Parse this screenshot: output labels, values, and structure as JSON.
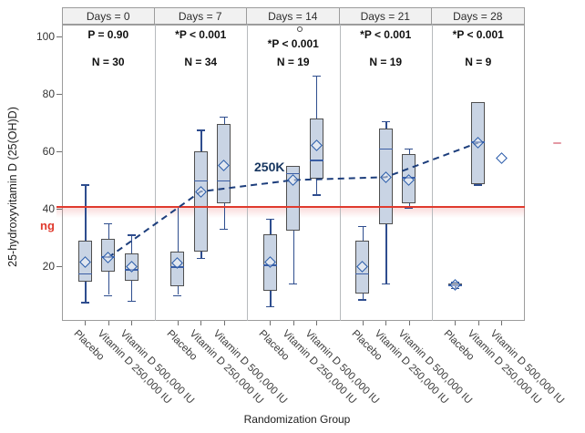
{
  "chart_data": {
    "type": "box",
    "title": "",
    "ylabel": "25-hydroxyvitamin D (25(OH)D)",
    "y_unit_label": "ng",
    "xlabel": "Randomization Group",
    "yticks": [
      20,
      40,
      60,
      80,
      100
    ],
    "ylim": [
      1,
      104
    ],
    "grid": false,
    "group_labels": [
      "Placebo",
      "Vitamin D 250,000 IU",
      "Vitamin D 500,000 IU"
    ],
    "reference_line": {
      "value": 40.6,
      "color": "#e03a2e",
      "label": "ng"
    },
    "trend": {
      "label": "250K",
      "series": "Vitamin D 250,000 IU mean",
      "days": [
        0,
        7,
        14,
        21,
        28
      ],
      "values": [
        23,
        46,
        50,
        51,
        63
      ],
      "color": "#1d3e7c",
      "style": "dashed"
    },
    "panels": [
      {
        "title": "Days = 0",
        "p_label": "P = 0.90",
        "n_label": "N = 30",
        "boxes": [
          {
            "group": "Placebo",
            "lo": 7.5,
            "q1": 14.5,
            "med": 17.5,
            "q3": 29,
            "hi": 48.5,
            "mean": 21.5
          },
          {
            "group": "Vitamin D 250,000 IU",
            "lo": 10,
            "q1": 18,
            "med": 23.5,
            "q3": 29.5,
            "hi": 35,
            "mean": 23
          },
          {
            "group": "Vitamin D 500,000 IU",
            "lo": 8,
            "q1": 15,
            "med": 19,
            "q3": 24.5,
            "hi": 31,
            "mean": 20
          }
        ]
      },
      {
        "title": "Days = 7",
        "p_label": "*P < 0.001",
        "n_label": "N = 34",
        "boxes": [
          {
            "group": "Placebo",
            "lo": 10,
            "q1": 13,
            "med": 20,
            "q3": 25,
            "hi": 41,
            "mean": 21
          },
          {
            "group": "Vitamin D 250,000 IU",
            "lo": 23,
            "q1": 25,
            "med": 50,
            "q3": 60,
            "hi": 67.5,
            "mean": 46
          },
          {
            "group": "Vitamin D 500,000 IU",
            "lo": 33,
            "q1": 42,
            "med": 50,
            "q3": 69.5,
            "hi": 72,
            "mean": 55
          }
        ]
      },
      {
        "title": "Days = 14",
        "p_label": "*P < 0.001",
        "n_label": "N = 19",
        "outlier": {
          "group_index": 1,
          "value": 102.5
        },
        "boxes": [
          {
            "group": "Placebo",
            "lo": 6,
            "q1": 11.5,
            "med": 20.5,
            "q3": 31,
            "hi": 36.5,
            "mean": 21.5
          },
          {
            "group": "Vitamin D 250,000 IU",
            "lo": 14,
            "q1": 32.5,
            "med": 52.5,
            "q3": 55,
            "hi": 55,
            "mean": 50
          },
          {
            "group": "Vitamin D 500,000 IU",
            "lo": 45,
            "q1": 50.5,
            "med": 57,
            "q3": 71.5,
            "hi": 86.5,
            "mean": 62
          }
        ]
      },
      {
        "title": "Days = 21",
        "p_label": "*P < 0.001",
        "n_label": "N = 19",
        "boxes": [
          {
            "group": "Placebo",
            "lo": 8.5,
            "q1": 10.5,
            "med": 17.5,
            "q3": 29,
            "hi": 34,
            "mean": 20
          },
          {
            "group": "Vitamin D 250,000 IU",
            "lo": 14,
            "q1": 34.5,
            "med": 61,
            "q3": 68,
            "hi": 70.5,
            "mean": 51
          },
          {
            "group": "Vitamin D 500,000 IU",
            "lo": 40.5,
            "q1": 42,
            "med": 51,
            "q3": 59,
            "hi": 61,
            "mean": 50
          }
        ]
      },
      {
        "title": "Days = 28",
        "p_label": "*P < 0.001",
        "n_label": "N = 9",
        "boxes": [
          {
            "group": "Placebo",
            "lo": 12.5,
            "q1": 13,
            "med": 13.5,
            "q3": 14,
            "hi": 14.5,
            "mean": 13.5
          },
          {
            "group": "Vitamin D 250,000 IU",
            "lo": 48.5,
            "q1": 48.5,
            "med": 63.5,
            "q3": 77,
            "hi": 77,
            "mean": 63
          },
          {
            "group": "Vitamin D 500,000 IU",
            "lo": null,
            "q1": null,
            "med": null,
            "q3": null,
            "hi": null,
            "mean": 57.5
          }
        ]
      }
    ],
    "stray_marks": {
      "right_margin_red_dash": "-"
    }
  }
}
